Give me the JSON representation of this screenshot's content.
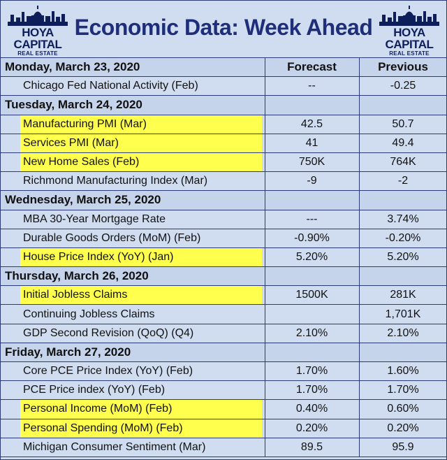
{
  "header": {
    "title": "Economic Data: Week Ahead",
    "logo_brand": "HOYA CAPITAL",
    "logo_sub": "REAL ESTATE"
  },
  "colors": {
    "navy": "#1f2e7a",
    "highlight": "#ffff4d",
    "background": "#d0ddf0"
  },
  "columns": {
    "forecast": "Forecast",
    "previous": "Previous"
  },
  "days": [
    {
      "label": "Monday, March 23, 2020",
      "items": [
        {
          "name": "Chicago Fed National Activity (Feb)",
          "forecast": "--",
          "previous": "-0.25",
          "highlight": false
        }
      ]
    },
    {
      "label": "Tuesday, March 24, 2020",
      "items": [
        {
          "name": "Manufacturing PMI (Mar)",
          "forecast": "42.5",
          "previous": "50.7",
          "highlight": true
        },
        {
          "name": "Services PMI (Mar)",
          "forecast": "41",
          "previous": "49.4",
          "highlight": true
        },
        {
          "name": "New Home Sales (Feb)",
          "forecast": "750K",
          "previous": "764K",
          "highlight": true
        },
        {
          "name": "Richmond Manufacturing Index (Mar)",
          "forecast": "-9",
          "previous": "-2",
          "highlight": false
        }
      ]
    },
    {
      "label": "Wednesday, March 25, 2020",
      "items": [
        {
          "name": "MBA 30-Year Mortgage Rate",
          "forecast": "---",
          "previous": "3.74%",
          "highlight": false
        },
        {
          "name": "Durable Goods Orders (MoM) (Feb)",
          "forecast": "-0.90%",
          "previous": "-0.20%",
          "highlight": false
        },
        {
          "name": "House Price Index (YoY) (Jan)",
          "forecast": "5.20%",
          "previous": "5.20%",
          "highlight": true
        }
      ]
    },
    {
      "label": "Thursday, March 26, 2020",
      "items": [
        {
          "name": "Initial Jobless Claims",
          "forecast": "1500K",
          "previous": "281K",
          "highlight": true
        },
        {
          "name": "Continuing Jobless Claims",
          "forecast": "",
          "previous": "1,701K",
          "highlight": false
        },
        {
          "name": "GDP Second Revision (QoQ) (Q4)",
          "forecast": "2.10%",
          "previous": "2.10%",
          "highlight": false
        }
      ]
    },
    {
      "label": "Friday, March 27, 2020",
      "items": [
        {
          "name": "Core PCE Price Index (YoY) (Feb)",
          "forecast": "1.70%",
          "previous": "1.60%",
          "highlight": false
        },
        {
          "name": "PCE Price index (YoY) (Feb)",
          "forecast": "1.70%",
          "previous": "1.70%",
          "highlight": false
        },
        {
          "name": "Personal Income (MoM) (Feb)",
          "forecast": "0.40%",
          "previous": "0.60%",
          "highlight": true
        },
        {
          "name": "Personal Spending (MoM) (Feb)",
          "forecast": "0.20%",
          "previous": "0.20%",
          "highlight": true
        },
        {
          "name": "Michigan Consumer Sentiment (Mar)",
          "forecast": "89.5",
          "previous": "95.9",
          "highlight": false
        }
      ]
    }
  ]
}
